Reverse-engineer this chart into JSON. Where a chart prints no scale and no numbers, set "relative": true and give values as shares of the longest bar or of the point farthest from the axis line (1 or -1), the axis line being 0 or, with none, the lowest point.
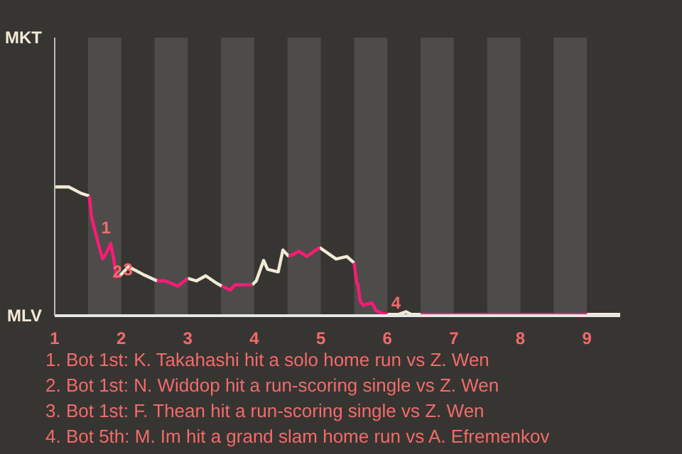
{
  "chart_data": {
    "type": "line",
    "relative": true,
    "x": [
      1.0,
      1.21,
      1.4,
      1.52,
      1.55,
      1.59,
      1.66,
      1.72,
      1.77,
      1.84,
      1.88,
      1.93,
      1.98,
      2.11,
      2.33,
      2.54,
      2.66,
      2.85,
      3.0,
      3.13,
      3.27,
      3.41,
      3.51,
      3.64,
      3.71,
      3.84,
      3.97,
      4.03,
      4.14,
      4.2,
      4.36,
      4.43,
      4.52,
      4.67,
      4.79,
      4.98,
      5.23,
      5.39,
      5.5,
      5.54,
      5.56,
      5.59,
      5.64,
      5.69,
      5.77,
      5.83,
      5.91,
      6.0,
      6.17,
      6.28,
      6.36,
      6.5,
      7.0,
      7.5,
      8.0,
      8.5,
      9.0,
      9.5
    ],
    "series": [
      {
        "color": "#f2ead6",
        "values": [
          1,
          1,
          0.95,
          0.93,
          null,
          null,
          null,
          null,
          null,
          null,
          null,
          null,
          0.31,
          0.38,
          0.32,
          0.27,
          null,
          null,
          0.29,
          0.27,
          0.31,
          0.26,
          0.23,
          null,
          null,
          null,
          0.24,
          0.27,
          0.43,
          0.36,
          0.34,
          0.51,
          0.46,
          null,
          null,
          0.53,
          0.44,
          0.46,
          0.41,
          null,
          null,
          null,
          null,
          null,
          null,
          null,
          null,
          0.01,
          0.01,
          0.03,
          0.01,
          0.01,
          0.01,
          0.01,
          0.01,
          null,
          0.01,
          0.01
        ]
      },
      {
        "color": "#ff1a75",
        "values": [
          null,
          null,
          null,
          0.93,
          0.78,
          0.69,
          0.55,
          0.44,
          0.48,
          0.56,
          0.46,
          0.3,
          0.31,
          null,
          null,
          0.27,
          0.27,
          0.23,
          0.29,
          null,
          null,
          null,
          0.23,
          0.2,
          0.24,
          0.24,
          0.24,
          null,
          null,
          null,
          null,
          null,
          0.46,
          0.5,
          0.46,
          0.53,
          null,
          null,
          0.41,
          0.25,
          0.24,
          0.11,
          0.08,
          0.09,
          0.1,
          0.04,
          0.02,
          0.01,
          null,
          null,
          null,
          0.01,
          0.01,
          0.01,
          0.01,
          0.01,
          0.01,
          null
        ]
      }
    ],
    "xlim": [
      1,
      9.5
    ],
    "xticks": [
      1,
      2,
      3,
      4,
      5,
      6,
      7,
      8,
      9
    ],
    "bands": [
      {
        "axis": "x",
        "from": 1.5,
        "to": 2,
        "color": "#4d4c4a"
      },
      {
        "axis": "x",
        "from": 2.5,
        "to": 3,
        "color": "#4d4c4a"
      },
      {
        "axis": "x",
        "from": 3.5,
        "to": 4,
        "color": "#4d4c4a"
      },
      {
        "axis": "x",
        "from": 4.5,
        "to": 5,
        "color": "#4d4c4a"
      },
      {
        "axis": "x",
        "from": 5.5,
        "to": 6,
        "color": "#4d4c4a"
      },
      {
        "axis": "x",
        "from": 6.5,
        "to": 7,
        "color": "#4d4c4a"
      },
      {
        "axis": "x",
        "from": 7.5,
        "to": 8,
        "color": "#4d4c4a"
      },
      {
        "axis": "x",
        "from": 8.5,
        "to": 9,
        "color": "#4d4c4a"
      }
    ],
    "annotations": [
      "MKT",
      "MLV",
      {
        "text": "1",
        "x": 1.55,
        "y": 0.78
      },
      {
        "text": "2",
        "x": 1.72,
        "y": 0.44
      },
      {
        "text": "3",
        "x": 1.88,
        "y": 0.46
      },
      {
        "text": "4",
        "x": 5.91,
        "y": 0.02
      },
      "1. Bot 1st: K. Takahashi hit a solo home run vs Z. Wen",
      "2. Bot 1st: N. Widdop hit a run-scoring single vs Z. Wen",
      "3. Bot 1st: F. Thean hit a run-scoring single vs Z. Wen",
      "4. Bot 5th: M. Im hit a grand slam home run vs A. Efremenkov"
    ]
  }
}
